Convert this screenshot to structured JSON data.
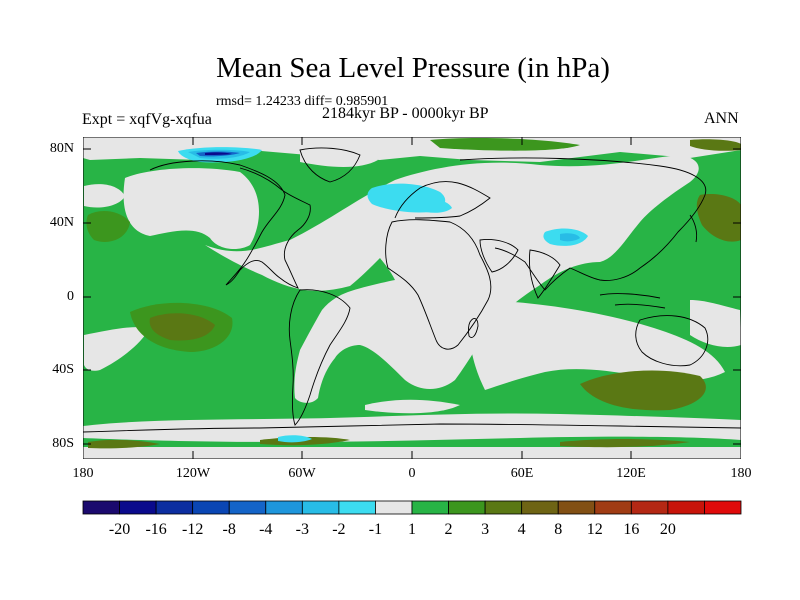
{
  "title": "Mean Sea Level Pressure (in hPa)",
  "stats": "rmsd= 1.24233 diff= 0.985901",
  "experiment": "Expt = xqfVg-xqfua",
  "period": "2184kyr BP - 0000kyr BP",
  "season": "ANN",
  "map": {
    "lon_range": [
      -180,
      180
    ],
    "lat_range": [
      -90,
      90
    ],
    "lat_ticks": [
      {
        "value": 80,
        "label": "80N"
      },
      {
        "value": 40,
        "label": "40N"
      },
      {
        "value": 0,
        "label": "0"
      },
      {
        "value": -40,
        "label": "40S"
      },
      {
        "value": -80,
        "label": "80S"
      }
    ],
    "lon_ticks": [
      {
        "value": -180,
        "label": "180"
      },
      {
        "value": -120,
        "label": "120W"
      },
      {
        "value": -60,
        "label": "60W"
      },
      {
        "value": 0,
        "label": "0"
      },
      {
        "value": 60,
        "label": "60E"
      },
      {
        "value": 120,
        "label": "120E"
      },
      {
        "value": 180,
        "label": "180"
      }
    ]
  },
  "colorbar": {
    "colors": [
      "#1b0a6e",
      "#0a0a8c",
      "#0c2ea0",
      "#0a46b4",
      "#1464c8",
      "#1e96dc",
      "#28bce6",
      "#3cdcf0",
      "#e6e6e6",
      "#28b446",
      "#3c961e",
      "#5a7814",
      "#6e6414",
      "#825014",
      "#a03c14",
      "#b42814",
      "#c8140a",
      "#e00a0a"
    ],
    "labels": [
      "-20",
      "-16",
      "-12",
      "-8",
      "-4",
      "-3",
      "-2",
      "-1",
      "1",
      "2",
      "3",
      "4",
      "8",
      "12",
      "16",
      "20"
    ]
  },
  "palette": {
    "neutral": "#e6e6e6",
    "green": "#28b446",
    "darkgreen": "#3c961e",
    "olive": "#5a7814",
    "cyan": "#3cdcf0",
    "lightblue": "#28bce6",
    "blue": "#1464c8",
    "navy": "#0a0a8c"
  }
}
